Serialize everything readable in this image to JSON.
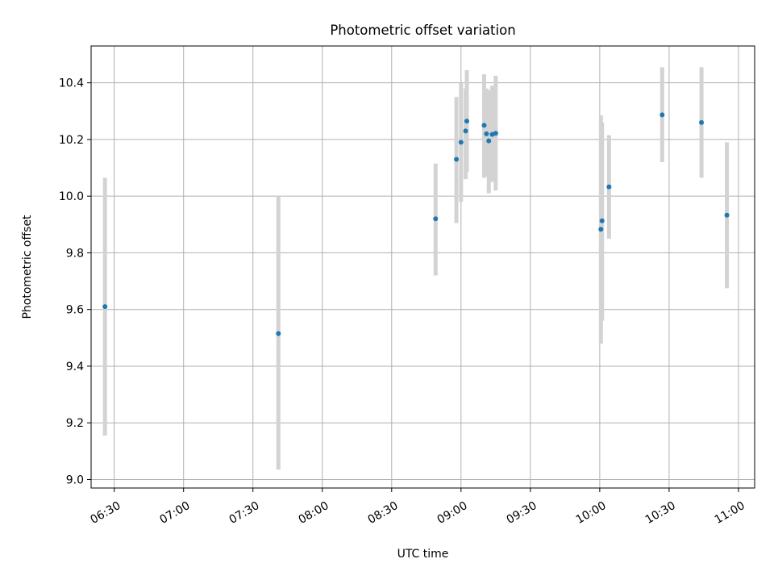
{
  "chart_data": {
    "type": "scatter",
    "title": "Photometric offset variation",
    "xlabel": "UTC time",
    "ylabel": "Photometric offset",
    "xlim": [
      "06:20",
      "11:07"
    ],
    "ylim": [
      8.97,
      10.53
    ],
    "x_ticks": [
      "06:30",
      "07:00",
      "07:30",
      "08:00",
      "08:30",
      "09:00",
      "09:30",
      "10:00",
      "10:30",
      "11:00"
    ],
    "y_ticks": [
      9.0,
      9.2,
      9.4,
      9.6,
      9.8,
      10.0,
      10.2,
      10.4
    ],
    "grid": true,
    "point_color": "#1f77b4",
    "errorbar_color": "#d3d3d3",
    "points": [
      {
        "time": "06:26",
        "offset": 9.61,
        "lower": 9.155,
        "upper": 10.065
      },
      {
        "time": "07:41",
        "offset": 9.515,
        "lower": 9.035,
        "upper": 10.0
      },
      {
        "time": "08:49",
        "offset": 9.92,
        "lower": 9.72,
        "upper": 10.115
      },
      {
        "time": "08:58",
        "offset": 10.13,
        "lower": 9.905,
        "upper": 10.35
      },
      {
        "time": "09:00",
        "offset": 10.19,
        "lower": 9.98,
        "upper": 10.4
      },
      {
        "time": "09:02",
        "offset": 10.23,
        "lower": 10.06,
        "upper": 10.38
      },
      {
        "time": "09:02.5",
        "offset": 10.265,
        "lower": 10.085,
        "upper": 10.445
      },
      {
        "time": "09:10",
        "offset": 10.25,
        "lower": 10.065,
        "upper": 10.43
      },
      {
        "time": "09:11",
        "offset": 10.22,
        "lower": 10.07,
        "upper": 10.38
      },
      {
        "time": "09:12",
        "offset": 10.195,
        "lower": 10.01,
        "upper": 10.375
      },
      {
        "time": "09:13.5",
        "offset": 10.218,
        "lower": 10.05,
        "upper": 10.39
      },
      {
        "time": "09:15",
        "offset": 10.222,
        "lower": 10.02,
        "upper": 10.425
      },
      {
        "time": "10:01",
        "offset": 9.913,
        "lower": 9.56,
        "upper": 10.26
      },
      {
        "time": "10:00.5",
        "offset": 9.883,
        "lower": 9.48,
        "upper": 10.285
      },
      {
        "time": "10:04",
        "offset": 10.033,
        "lower": 9.85,
        "upper": 10.215
      },
      {
        "time": "10:27",
        "offset": 10.287,
        "lower": 10.12,
        "upper": 10.455
      },
      {
        "time": "10:44",
        "offset": 10.26,
        "lower": 10.065,
        "upper": 10.455
      },
      {
        "time": "10:55",
        "offset": 9.933,
        "lower": 9.675,
        "upper": 10.19
      }
    ]
  }
}
